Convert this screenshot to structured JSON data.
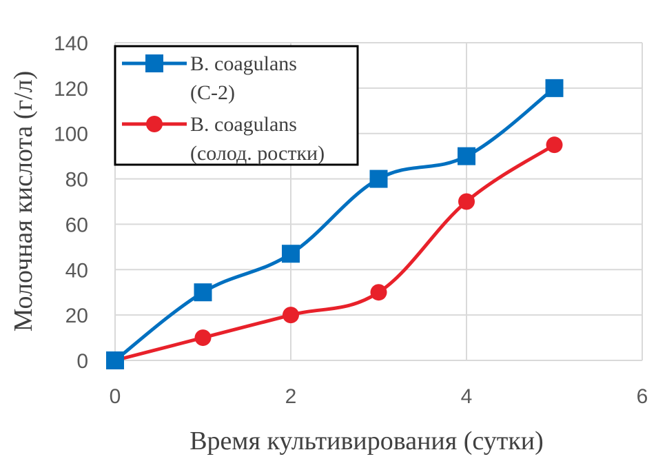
{
  "chart_data": {
    "type": "line",
    "xlabel": "Время культивирования  (сутки)",
    "ylabel": "Молочная кислота  (г/л)",
    "xlim": [
      0,
      6
    ],
    "ylim": [
      0,
      140
    ],
    "xticks": [
      "0",
      "2",
      "4",
      "6"
    ],
    "yticks": [
      "0",
      "20",
      "40",
      "60",
      "80",
      "100",
      "120",
      "140"
    ],
    "grid": true,
    "legend_position": "top-left",
    "series": [
      {
        "name_lines": [
          "B. coagulans",
          "(С-2)"
        ],
        "color": "#0070C0",
        "marker": "square",
        "x": [
          0,
          1,
          2,
          3,
          4,
          5
        ],
        "y": [
          0,
          30,
          47,
          80,
          90,
          120
        ]
      },
      {
        "name_lines": [
          "B. coagulans",
          "(солод. ростки)"
        ],
        "color": "#E8212A",
        "marker": "circle",
        "x": [
          0,
          1,
          2,
          3,
          4,
          5
        ],
        "y": [
          0,
          10,
          20,
          30,
          70,
          95
        ]
      }
    ]
  }
}
